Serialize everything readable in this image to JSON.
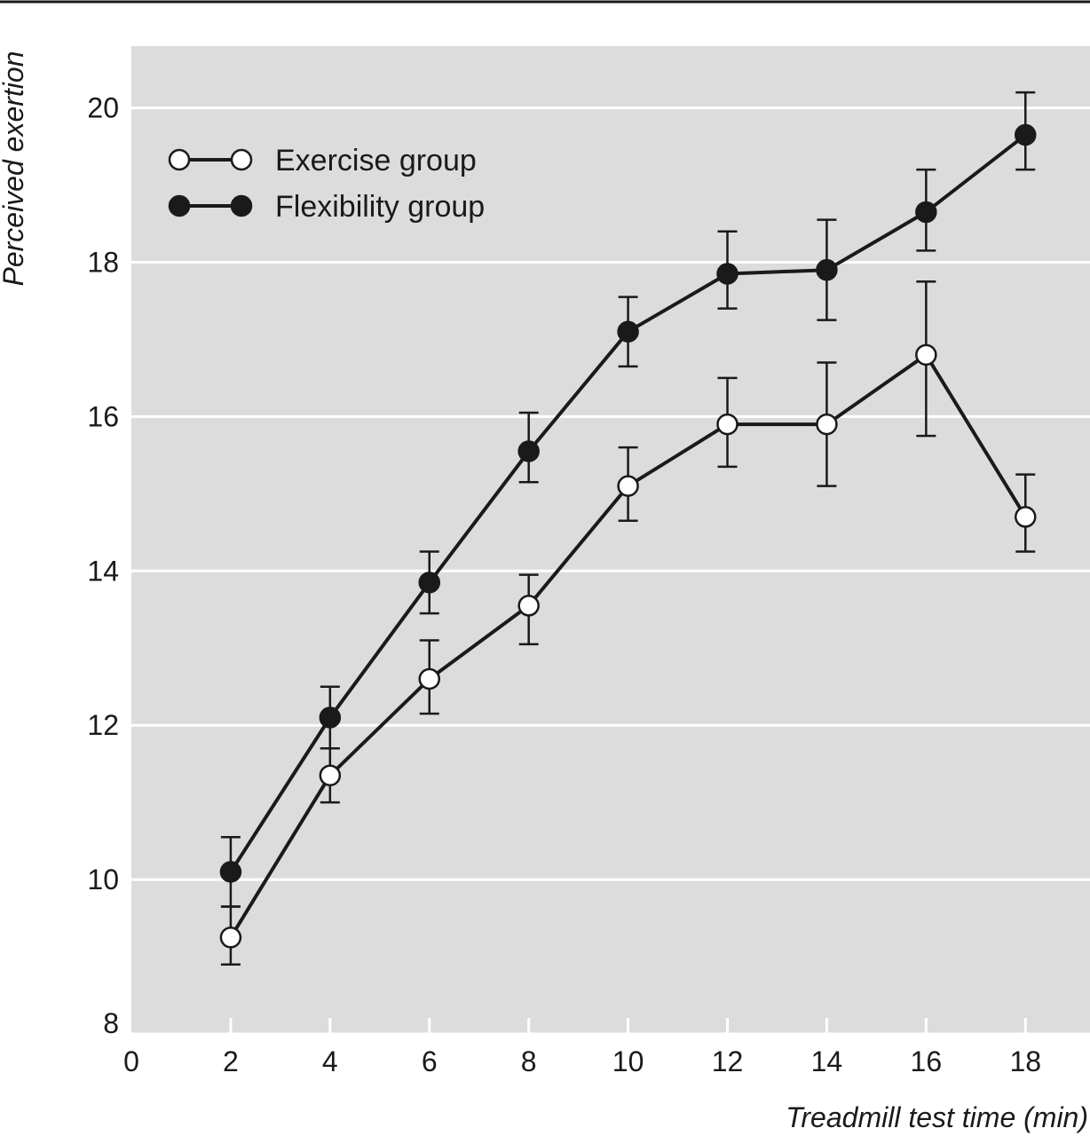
{
  "chart_data": {
    "type": "line",
    "title": "",
    "xlabel": "Treadmill test time (min)",
    "ylabel": "Perceived exertion",
    "xlim": [
      0,
      19.3
    ],
    "ylim": [
      8,
      20.8
    ],
    "x_ticks": [
      0,
      2,
      4,
      6,
      8,
      10,
      12,
      14,
      16,
      18
    ],
    "y_ticks": [
      8,
      10,
      12,
      14,
      16,
      18,
      20
    ],
    "x_tick_labels": [
      "0",
      "2",
      "4",
      "6",
      "8",
      "10",
      "12",
      "14",
      "16",
      "18"
    ],
    "y_tick_labels": [
      "8",
      "10",
      "12",
      "14",
      "16",
      "18",
      "20"
    ],
    "grid": "horizontal",
    "background_color": "#dcdcdc",
    "grid_color": "#ffffff",
    "line_color": "#1a1a1a",
    "legend_position": "top-left",
    "series": [
      {
        "name": "Exercise group",
        "marker": "open-circle",
        "x": [
          2,
          4,
          6,
          8,
          10,
          12,
          14,
          16,
          18
        ],
        "y": [
          9.25,
          11.35,
          12.6,
          13.55,
          15.1,
          15.9,
          15.9,
          16.8,
          14.7
        ],
        "error_low": [
          8.9,
          11.0,
          12.15,
          13.05,
          14.65,
          15.35,
          15.1,
          15.75,
          14.25
        ],
        "error_high": [
          9.65,
          11.7,
          13.1,
          13.95,
          15.6,
          16.5,
          16.7,
          17.75,
          15.25
        ]
      },
      {
        "name": "Flexibility group",
        "marker": "filled-circle",
        "x": [
          2,
          4,
          6,
          8,
          10,
          12,
          14,
          16,
          18
        ],
        "y": [
          10.1,
          12.1,
          13.85,
          15.55,
          17.1,
          17.85,
          17.9,
          18.65,
          19.65
        ],
        "error_low": [
          9.65,
          11.7,
          13.45,
          15.15,
          16.65,
          17.4,
          17.25,
          18.15,
          19.2
        ],
        "error_high": [
          10.55,
          12.5,
          14.25,
          16.05,
          17.55,
          18.4,
          18.55,
          19.2,
          20.2
        ]
      }
    ]
  }
}
